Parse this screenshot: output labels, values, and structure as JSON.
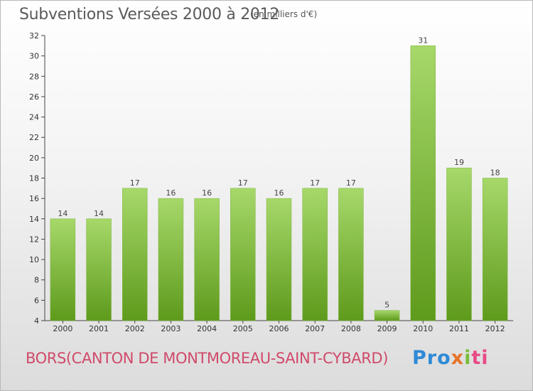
{
  "header": {
    "title": "Subventions Versées 2000 à 2012",
    "subtitle": "(en milliers d'€)"
  },
  "footer": {
    "location": "BORS(CANTON DE MONTMOREAU-SAINT-CYBARD)",
    "logo": [
      "Pro",
      "x",
      "i",
      "ti"
    ]
  },
  "colors": {
    "bar_light": "#a6d86a",
    "bar_dark": "#5e9a1c",
    "location_text": "#d04a6a"
  },
  "chart_data": {
    "type": "bar",
    "title": "Subventions Versées 2000 à 2012",
    "subtitle": "(en milliers d'€)",
    "xlabel": "",
    "ylabel": "",
    "categories": [
      "2000",
      "2001",
      "2002",
      "2003",
      "2004",
      "2005",
      "2006",
      "2007",
      "2008",
      "2009",
      "2010",
      "2011",
      "2012"
    ],
    "values": [
      14,
      14,
      17,
      16,
      16,
      17,
      16,
      17,
      17,
      5,
      31,
      19,
      18
    ],
    "ylim": [
      4,
      32
    ],
    "yticks": [
      4,
      6,
      8,
      10,
      12,
      14,
      16,
      18,
      20,
      22,
      24,
      26,
      28,
      30,
      32
    ],
    "grid": false,
    "legend": "none"
  }
}
